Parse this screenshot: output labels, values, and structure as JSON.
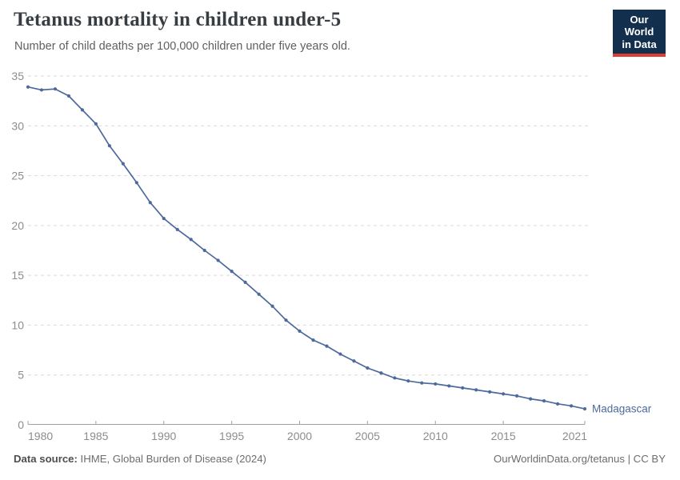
{
  "header": {
    "title": "Tetanus mortality in children under-5",
    "subtitle": "Number of child deaths per 100,000 children under five years old.",
    "logo": {
      "line1": "Our World",
      "line2": "in Data",
      "bg_color": "#132f4e",
      "accent_color": "#dc3e36"
    }
  },
  "chart_data": {
    "type": "line",
    "title": "Tetanus mortality in children under-5",
    "subtitle": "Number of child deaths per 100,000 children under five years old.",
    "xlabel": "",
    "ylabel": "",
    "xlim": [
      1980,
      2021
    ],
    "ylim": [
      0,
      35
    ],
    "yticks": [
      0,
      5,
      10,
      15,
      20,
      25,
      30,
      35
    ],
    "xticks": [
      1980,
      1985,
      1990,
      1995,
      2000,
      2005,
      2010,
      2015,
      2021
    ],
    "grid": "horizontal-dashed",
    "legend_position": "end-of-line-label",
    "colors": {
      "grid": "#d9d9d9",
      "axis": "#a1a1a1",
      "tick_text": "#8c8c8c"
    },
    "series": [
      {
        "name": "Madagascar",
        "color": "#4C6A9C",
        "x": [
          1980,
          1981,
          1982,
          1983,
          1984,
          1985,
          1986,
          1987,
          1988,
          1989,
          1990,
          1991,
          1992,
          1993,
          1994,
          1995,
          1996,
          1997,
          1998,
          1999,
          2000,
          2001,
          2002,
          2003,
          2004,
          2005,
          2006,
          2007,
          2008,
          2009,
          2010,
          2011,
          2012,
          2013,
          2014,
          2015,
          2016,
          2017,
          2018,
          2019,
          2020,
          2021
        ],
        "values": [
          33.9,
          33.6,
          33.7,
          33.0,
          31.6,
          30.2,
          28.0,
          26.2,
          24.3,
          22.3,
          20.7,
          19.6,
          18.6,
          17.5,
          16.5,
          15.4,
          14.3,
          13.1,
          11.9,
          10.5,
          9.4,
          8.5,
          7.9,
          7.1,
          6.4,
          5.7,
          5.2,
          4.7,
          4.4,
          4.2,
          4.1,
          3.9,
          3.7,
          3.5,
          3.3,
          3.1,
          2.9,
          2.6,
          2.4,
          2.1,
          1.9,
          1.6
        ]
      }
    ]
  },
  "footer": {
    "source_label": "Data source:",
    "source_text": " IHME, Global Burden of Disease (2024)",
    "right_text": "OurWorldinData.org/tetanus | CC BY"
  }
}
